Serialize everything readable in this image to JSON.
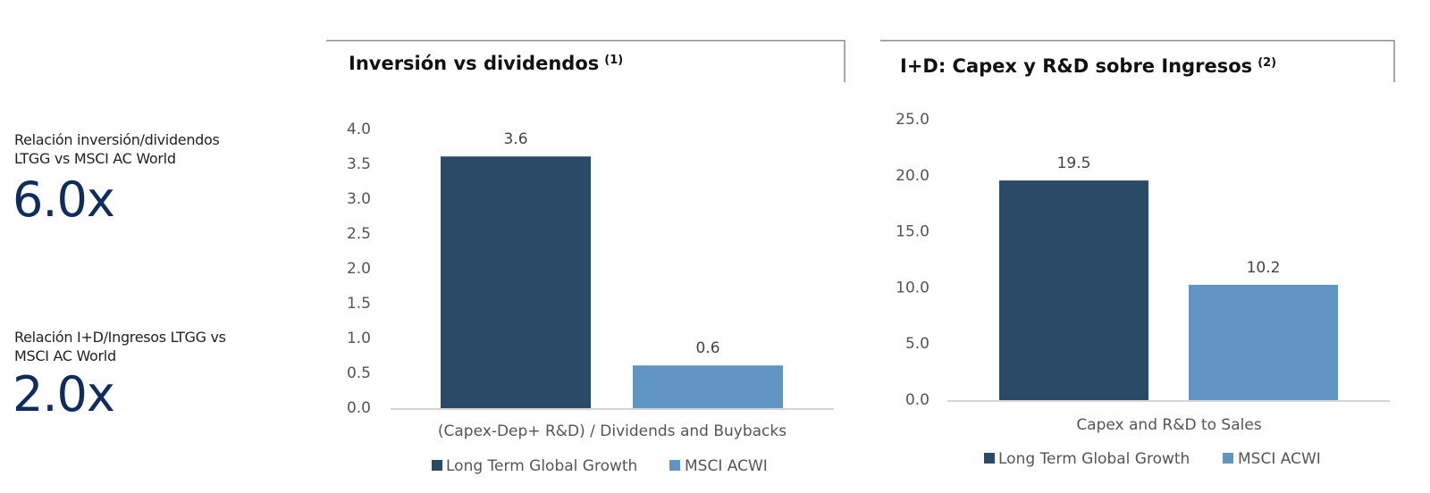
{
  "stats": [
    {
      "label_line1": "Relación inversión/dividendos",
      "label_line2": "LTGG vs MSCI AC World",
      "value": "6.0x"
    },
    {
      "label_line1": "Relación I+D/Ingresos LTGG vs",
      "label_line2": "MSCI AC World",
      "value": "2.0x"
    }
  ],
  "colors": {
    "series1": "#2b4a66",
    "series2": "#6094c2",
    "stat_value": "#0e2d5e"
  },
  "chart_data": [
    {
      "type": "bar",
      "title": "Inversión vs dividendos",
      "title_note": "(1)",
      "categories": [
        "(Capex-Dep+ R&D) / Dividends and Buybacks"
      ],
      "series": [
        {
          "name": "Long Term Global Growth",
          "values": [
            3.6
          ]
        },
        {
          "name": "MSCI ACWI",
          "values": [
            0.6
          ]
        }
      ],
      "data_labels": [
        "3.6",
        "0.6"
      ],
      "yticks": [
        "0.0",
        "0.5",
        "1.0",
        "1.5",
        "2.0",
        "2.5",
        "3.0",
        "3.5",
        "4.0"
      ],
      "ylim": [
        0,
        4.0
      ],
      "grid": false,
      "legend": "bottom"
    },
    {
      "type": "bar",
      "title": "I+D: Capex y R&D sobre Ingresos",
      "title_note": "(2)",
      "categories": [
        "Capex and R&D to Sales"
      ],
      "series": [
        {
          "name": "Long Term Global Growth",
          "values": [
            19.5
          ]
        },
        {
          "name": "MSCI ACWI",
          "values": [
            10.2
          ]
        }
      ],
      "data_labels": [
        "19.5",
        "10.2"
      ],
      "yticks": [
        "0.0",
        "5.0",
        "10.0",
        "15.0",
        "20.0",
        "25.0"
      ],
      "ylim": [
        0,
        25.0
      ],
      "grid": false,
      "legend": "bottom"
    }
  ]
}
